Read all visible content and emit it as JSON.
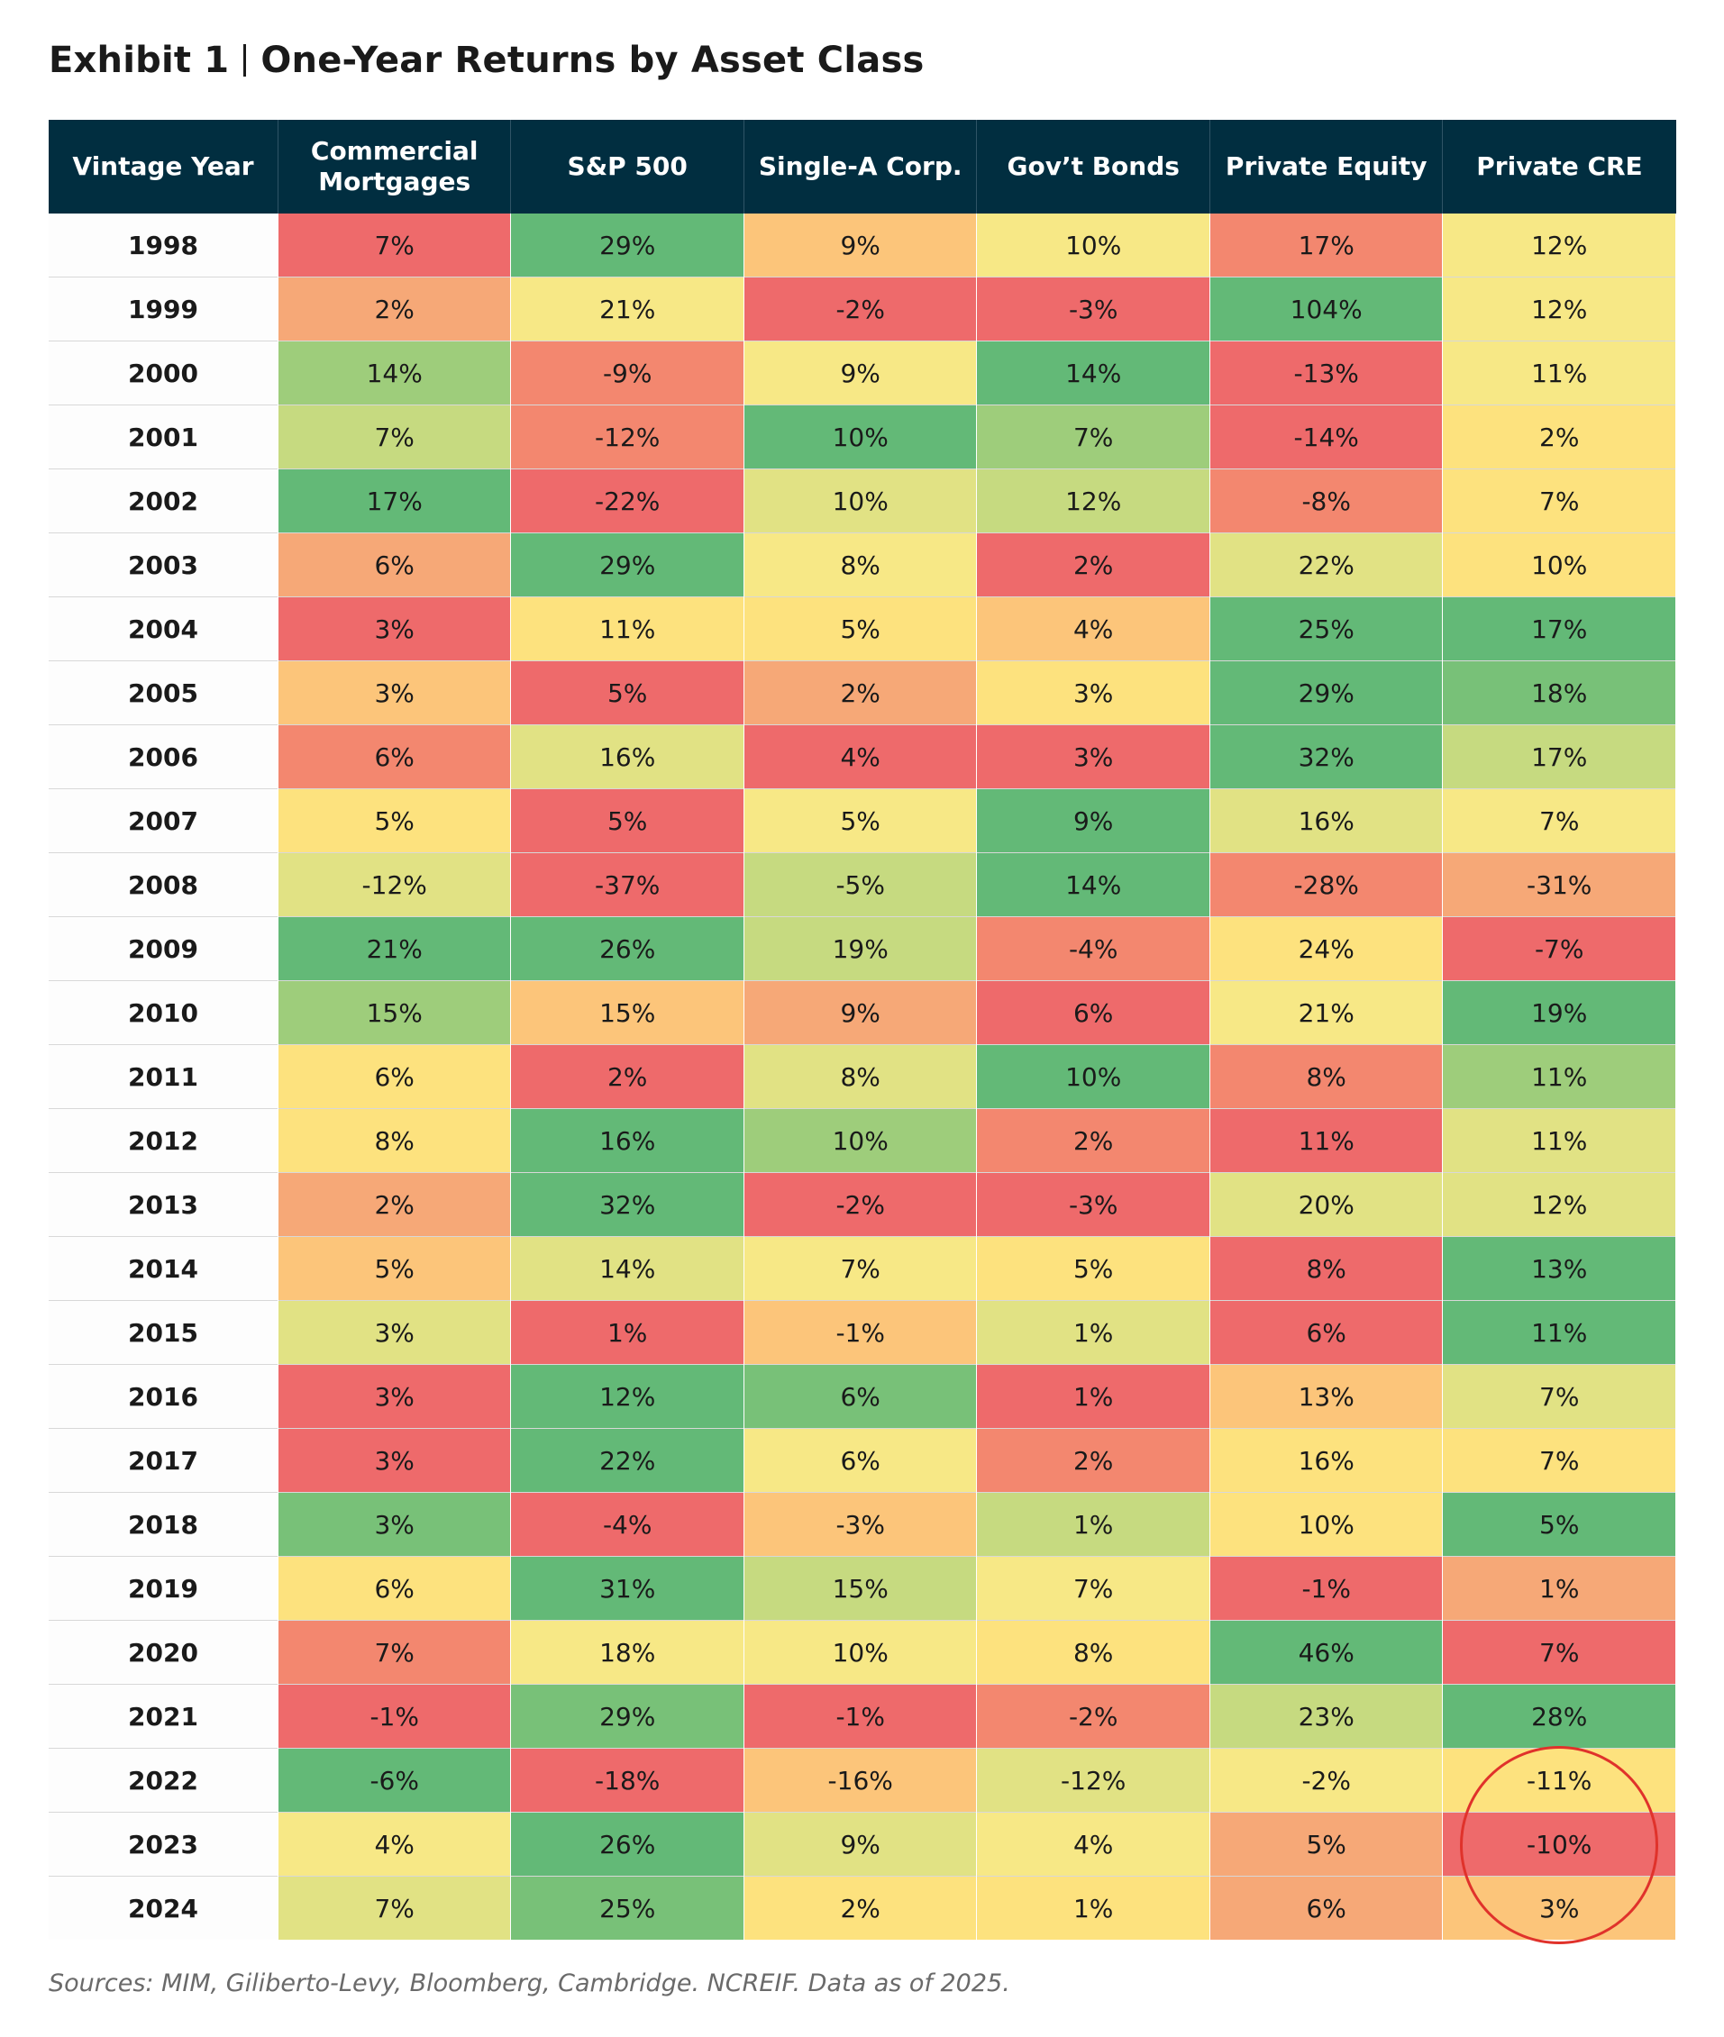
{
  "title": {
    "exhibit": "Exhibit 1",
    "text": "One-Year Returns by Asset Class"
  },
  "source": "Sources: MIM, Giliberto-Levy, Bloomberg, Cambridge. NCREIF. Data as of 2025.",
  "colors": {
    "header_bg": "#012e40",
    "highlight_circle": "#e0322b",
    "scale": [
      "#ee6a6b",
      "#f3876f",
      "#f6a877",
      "#fcc57a",
      "#fde27e",
      "#f7e886",
      "#e1e284",
      "#c6da80",
      "#9ecd7b",
      "#78c178",
      "#63b977"
    ]
  },
  "chart_data": {
    "type": "table",
    "title": "One-Year Returns by Asset Class",
    "columns": [
      "Vintage Year",
      "Commercial Mortgages",
      "S&P 500",
      "Single-A Corp.",
      "Gov't Bonds",
      "Private Equity",
      "Private CRE"
    ],
    "header_labels": [
      "Vintage Year",
      "Commercial\nMortgages",
      "S&P 500",
      "Single-A Corp.",
      "Gov’t Bonds",
      "Private Equity",
      "Private CRE"
    ],
    "rows": [
      {
        "year": "1998",
        "values": [
          "7%",
          "29%",
          "9%",
          "10%",
          "17%",
          "12%"
        ],
        "levels": [
          0,
          10,
          3,
          5,
          1,
          5
        ]
      },
      {
        "year": "1999",
        "values": [
          "2%",
          "21%",
          "-2%",
          "-3%",
          "104%",
          "12%"
        ],
        "levels": [
          2,
          5,
          0,
          0,
          10,
          5
        ]
      },
      {
        "year": "2000",
        "values": [
          "14%",
          "-9%",
          "9%",
          "14%",
          "-13%",
          "11%"
        ],
        "levels": [
          8,
          1,
          5,
          10,
          0,
          5
        ]
      },
      {
        "year": "2001",
        "values": [
          "7%",
          "-12%",
          "10%",
          "7%",
          "-14%",
          "2%"
        ],
        "levels": [
          7,
          1,
          10,
          8,
          0,
          4
        ]
      },
      {
        "year": "2002",
        "values": [
          "17%",
          "-22%",
          "10%",
          "12%",
          "-8%",
          "7%"
        ],
        "levels": [
          10,
          0,
          6,
          7,
          1,
          4
        ]
      },
      {
        "year": "2003",
        "values": [
          "6%",
          "29%",
          "8%",
          "2%",
          "22%",
          "10%"
        ],
        "levels": [
          2,
          10,
          5,
          0,
          6,
          4
        ]
      },
      {
        "year": "2004",
        "values": [
          "3%",
          "11%",
          "5%",
          "4%",
          "25%",
          "17%"
        ],
        "levels": [
          0,
          4,
          4,
          3,
          10,
          10
        ]
      },
      {
        "year": "2005",
        "values": [
          "3%",
          "5%",
          "2%",
          "3%",
          "29%",
          "18%"
        ],
        "levels": [
          3,
          0,
          2,
          4,
          10,
          9
        ]
      },
      {
        "year": "2006",
        "values": [
          "6%",
          "16%",
          "4%",
          "3%",
          "32%",
          "17%"
        ],
        "levels": [
          1,
          6,
          0,
          0,
          10,
          7
        ]
      },
      {
        "year": "2007",
        "values": [
          "5%",
          "5%",
          "5%",
          "9%",
          "16%",
          "7%"
        ],
        "levels": [
          4,
          0,
          5,
          10,
          6,
          5
        ]
      },
      {
        "year": "2008",
        "values": [
          "-12%",
          "-37%",
          "-5%",
          "14%",
          "-28%",
          "-31%"
        ],
        "levels": [
          6,
          0,
          7,
          10,
          1,
          2
        ]
      },
      {
        "year": "2009",
        "values": [
          "21%",
          "26%",
          "19%",
          "-4%",
          "24%",
          "-7%"
        ],
        "levels": [
          10,
          10,
          7,
          1,
          4,
          0
        ]
      },
      {
        "year": "2010",
        "values": [
          "15%",
          "15%",
          "9%",
          "6%",
          "21%",
          "19%"
        ],
        "levels": [
          8,
          3,
          2,
          0,
          5,
          10
        ]
      },
      {
        "year": "2011",
        "values": [
          "6%",
          "2%",
          "8%",
          "10%",
          "8%",
          "11%"
        ],
        "levels": [
          4,
          0,
          6,
          10,
          1,
          8
        ]
      },
      {
        "year": "2012",
        "values": [
          "8%",
          "16%",
          "10%",
          "2%",
          "11%",
          "11%"
        ],
        "levels": [
          4,
          10,
          8,
          1,
          0,
          6
        ]
      },
      {
        "year": "2013",
        "values": [
          "2%",
          "32%",
          "-2%",
          "-3%",
          "20%",
          "12%"
        ],
        "levels": [
          2,
          10,
          0,
          0,
          6,
          6
        ]
      },
      {
        "year": "2014",
        "values": [
          "5%",
          "14%",
          "7%",
          "5%",
          "8%",
          "13%"
        ],
        "levels": [
          3,
          6,
          5,
          4,
          0,
          10
        ]
      },
      {
        "year": "2015",
        "values": [
          "3%",
          "1%",
          "-1%",
          "1%",
          "6%",
          "11%"
        ],
        "levels": [
          6,
          0,
          3,
          6,
          0,
          10
        ]
      },
      {
        "year": "2016",
        "values": [
          "3%",
          "12%",
          "6%",
          "1%",
          "13%",
          "7%"
        ],
        "levels": [
          0,
          10,
          9,
          0,
          3,
          6
        ]
      },
      {
        "year": "2017",
        "values": [
          "3%",
          "22%",
          "6%",
          "2%",
          "16%",
          "7%"
        ],
        "levels": [
          0,
          10,
          5,
          1,
          4,
          4
        ]
      },
      {
        "year": "2018",
        "values": [
          "3%",
          "-4%",
          "-3%",
          "1%",
          "10%",
          "5%"
        ],
        "levels": [
          9,
          0,
          3,
          7,
          4,
          10
        ]
      },
      {
        "year": "2019",
        "values": [
          "6%",
          "31%",
          "15%",
          "7%",
          "-1%",
          "1%"
        ],
        "levels": [
          4,
          10,
          7,
          5,
          0,
          2
        ]
      },
      {
        "year": "2020",
        "values": [
          "7%",
          "18%",
          "10%",
          "8%",
          "46%",
          "7%"
        ],
        "levels": [
          1,
          5,
          5,
          4,
          10,
          0
        ]
      },
      {
        "year": "2021",
        "values": [
          "-1%",
          "29%",
          "-1%",
          "-2%",
          "23%",
          "28%"
        ],
        "levels": [
          0,
          9,
          0,
          1,
          7,
          10
        ]
      },
      {
        "year": "2022",
        "values": [
          "-6%",
          "-18%",
          "-16%",
          "-12%",
          "-2%",
          "-11%"
        ],
        "levels": [
          10,
          0,
          3,
          6,
          5,
          4
        ]
      },
      {
        "year": "2023",
        "values": [
          "4%",
          "26%",
          "9%",
          "4%",
          "5%",
          "-10%"
        ],
        "levels": [
          5,
          10,
          6,
          5,
          2,
          0
        ]
      },
      {
        "year": "2024",
        "values": [
          "7%",
          "25%",
          "2%",
          "1%",
          "6%",
          "3%"
        ],
        "levels": [
          6,
          9,
          4,
          4,
          2,
          3
        ]
      }
    ],
    "highlight": {
      "column": "Private CRE",
      "years": [
        "2022",
        "2023",
        "2024"
      ],
      "shape": "circle"
    }
  }
}
